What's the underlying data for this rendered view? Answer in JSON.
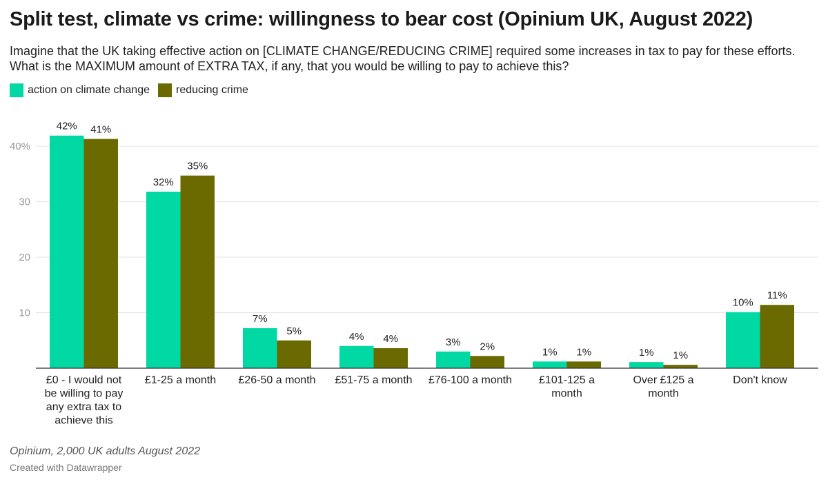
{
  "title": "Split test, climate vs crime: willingness to bear cost (Opinium UK, August 2022)",
  "subtitle": "Imagine that the UK taking effective action on [CLIMATE CHANGE/REDUCING CRIME] required some increases in tax to pay for these efforts. What is the MAXIMUM amount of EXTRA TAX, if any, that you would be willing to pay to achieve this?",
  "source": "Opinium, 2,000 UK adults August 2022",
  "credit": "Created with Datawrapper",
  "colors": {
    "climate": "#00d9a3",
    "crime": "#6b6a00",
    "grid": "#e2e2e2",
    "axis": "#333333",
    "tick": "#999999"
  },
  "chart_data": {
    "type": "bar",
    "categories": [
      [
        "£0 - I would not",
        "be willing to pay",
        "any extra tax to",
        "achieve this"
      ],
      [
        "£1-25 a month"
      ],
      [
        "£26-50 a month"
      ],
      [
        "£51-75 a month"
      ],
      [
        "£76-100 a month"
      ],
      [
        "£101-125 a",
        "month"
      ],
      [
        "Over £125 a",
        "month"
      ],
      [
        "Don't know"
      ]
    ],
    "series": [
      {
        "name": "action on climate change",
        "values": [
          41.9,
          31.8,
          7.2,
          4.0,
          3.0,
          1.2,
          1.1,
          10.1
        ],
        "labels": [
          "42%",
          "32%",
          "7%",
          "4%",
          "3%",
          "1%",
          "1%",
          "10%"
        ]
      },
      {
        "name": "reducing crime",
        "values": [
          41.3,
          34.7,
          5.0,
          3.6,
          2.2,
          1.2,
          0.6,
          11.4
        ],
        "labels": [
          "41%",
          "35%",
          "5%",
          "4%",
          "2%",
          "1%",
          "1%",
          "11%"
        ]
      }
    ],
    "yticks": [
      "40%",
      "30",
      "20",
      "10"
    ],
    "ytick_values": [
      40,
      30,
      20,
      10
    ],
    "ylim": [
      0,
      45
    ],
    "grid": true,
    "legend": "top-left"
  }
}
